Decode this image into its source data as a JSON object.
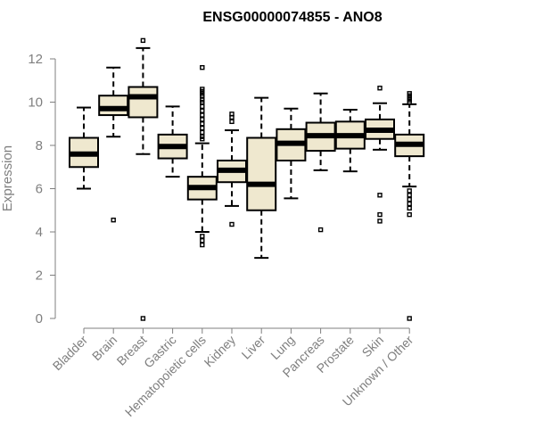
{
  "chart_data": {
    "type": "boxplot",
    "title": "ENSG00000074855 - ANO8",
    "xlabel": "",
    "ylabel": "Expression",
    "ylim": [
      0,
      12
    ],
    "yticks": [
      0,
      2,
      4,
      6,
      8,
      10,
      12
    ],
    "box_color": "#efe8cf",
    "axis_color": "#7f7f7f",
    "categories": [
      "Bladder",
      "Brain",
      "Breast",
      "Gastric",
      "Hematopoietic cells",
      "Kidney",
      "Liver",
      "Lung",
      "Pancreas",
      "Prostate",
      "Skin",
      "Unknown / Other"
    ],
    "boxes": [
      {
        "category": "Bladder",
        "whisker_low": 6.0,
        "q1": 7.0,
        "median": 7.6,
        "q3": 8.35,
        "whisker_high": 9.75,
        "outliers": []
      },
      {
        "category": "Brain",
        "whisker_low": 8.4,
        "q1": 9.4,
        "median": 9.7,
        "q3": 10.3,
        "whisker_high": 11.6,
        "outliers": [
          4.55
        ]
      },
      {
        "category": "Breast",
        "whisker_low": 7.6,
        "q1": 9.3,
        "median": 10.25,
        "q3": 10.7,
        "whisker_high": 12.5,
        "outliers": [
          12.85,
          0.0
        ]
      },
      {
        "category": "Gastric",
        "whisker_low": 6.55,
        "q1": 7.4,
        "median": 7.95,
        "q3": 8.5,
        "whisker_high": 9.8,
        "outliers": []
      },
      {
        "category": "Hematopoietic cells",
        "whisker_low": 4.0,
        "q1": 5.5,
        "median": 6.05,
        "q3": 6.55,
        "whisker_high": 8.1,
        "outliers": [
          11.6,
          10.6,
          10.5,
          10.4,
          10.3,
          10.1,
          10.0,
          9.8,
          9.6,
          9.4,
          9.2,
          9.0,
          8.8,
          8.6,
          8.4,
          8.3,
          3.8,
          3.6,
          3.4
        ]
      },
      {
        "category": "Kidney",
        "whisker_low": 5.2,
        "q1": 6.3,
        "median": 6.85,
        "q3": 7.3,
        "whisker_high": 8.7,
        "outliers": [
          9.45,
          9.3,
          9.1,
          4.35
        ]
      },
      {
        "category": "Liver",
        "whisker_low": 2.8,
        "q1": 5.0,
        "median": 6.2,
        "q3": 8.35,
        "whisker_high": 10.2,
        "outliers": []
      },
      {
        "category": "Lung",
        "whisker_low": 5.55,
        "q1": 7.3,
        "median": 8.1,
        "q3": 8.75,
        "whisker_high": 9.7,
        "outliers": []
      },
      {
        "category": "Pancreas",
        "whisker_low": 6.85,
        "q1": 7.75,
        "median": 8.45,
        "q3": 9.05,
        "whisker_high": 10.4,
        "outliers": [
          4.1
        ]
      },
      {
        "category": "Prostate",
        "whisker_low": 6.8,
        "q1": 7.85,
        "median": 8.45,
        "q3": 9.1,
        "whisker_high": 9.65,
        "outliers": []
      },
      {
        "category": "Skin",
        "whisker_low": 7.8,
        "q1": 8.3,
        "median": 8.7,
        "q3": 9.2,
        "whisker_high": 9.95,
        "outliers": [
          10.65,
          5.7,
          4.8,
          4.5
        ]
      },
      {
        "category": "Unknown / Other",
        "whisker_low": 6.1,
        "q1": 7.5,
        "median": 8.05,
        "q3": 8.5,
        "whisker_high": 9.9,
        "outliers": [
          10.4,
          10.3,
          10.2,
          10.1,
          10.0,
          5.9,
          5.7,
          5.5,
          5.3,
          5.1,
          4.8,
          0.0
        ]
      }
    ]
  }
}
